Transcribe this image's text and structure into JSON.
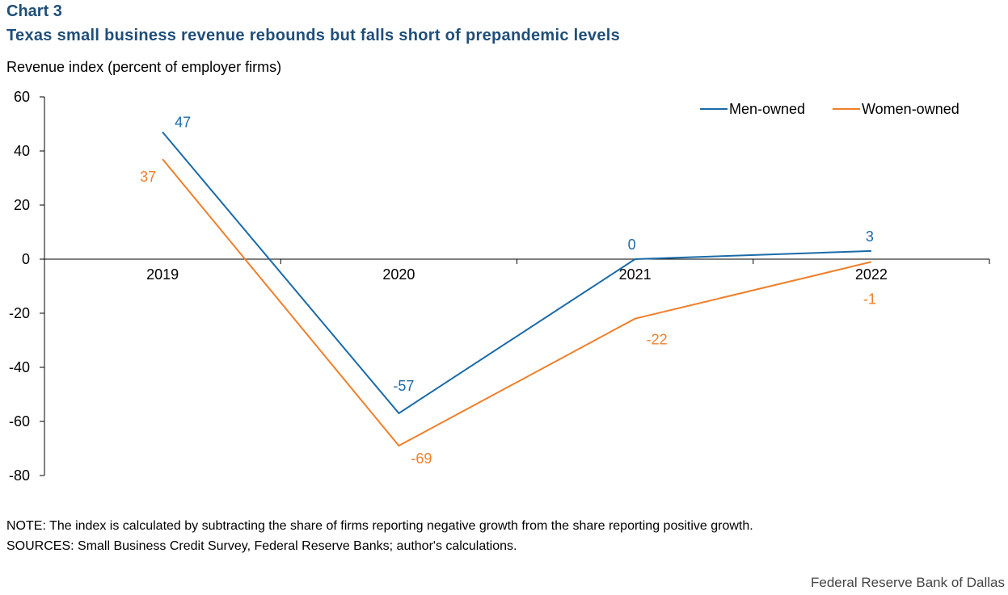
{
  "header": {
    "chart_label": "Chart 3",
    "title": "Texas small business revenue rebounds but falls short of prepandemic levels"
  },
  "chart_data": {
    "type": "line",
    "title": "Texas small business revenue rebounds but falls short of prepandemic levels",
    "ylabel": "Revenue  index (percent of employer firms)",
    "xlabel": "",
    "categories": [
      "2019",
      "2020",
      "2021",
      "2022"
    ],
    "ylim": [
      -80,
      60
    ],
    "yticks": [
      60,
      40,
      20,
      0,
      -20,
      -40,
      -60,
      -80
    ],
    "legend_position": "top-right",
    "series": [
      {
        "name": "Men-owned",
        "color": "#1a6aa8",
        "values": [
          47,
          -57,
          0,
          3
        ],
        "labels": [
          "47",
          "-57",
          "0",
          "3"
        ]
      },
      {
        "name": "Women-owned",
        "color": "#f07f2a",
        "values": [
          37,
          -69,
          -22,
          -1
        ],
        "labels": [
          "37",
          "-69",
          "-22",
          "-1"
        ]
      }
    ]
  },
  "footer": {
    "note": "NOTE: The index is calculated by subtracting the share of firms reporting negative growth from the share reporting positive growth.",
    "sources": "SOURCES: Small Business Credit Survey, Federal Reserve Banks; author's calculations.",
    "brand": "Federal Reserve Bank of Dallas"
  }
}
